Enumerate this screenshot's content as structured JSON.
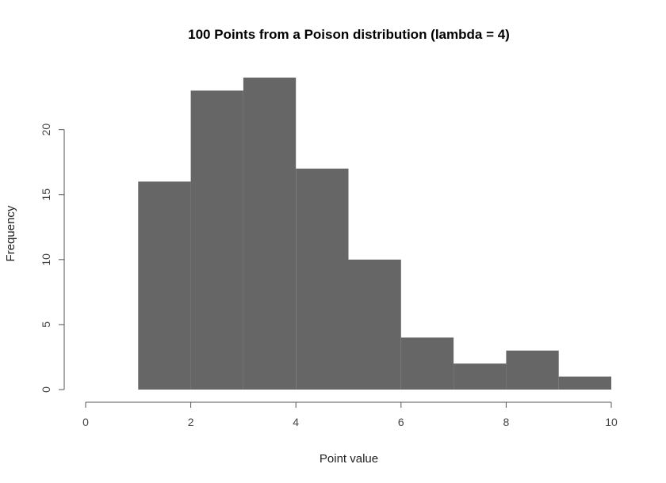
{
  "chart_data": {
    "type": "bar",
    "title": "100 Points from a Poison distribution (lambda = 4)",
    "xlabel": "Point value",
    "ylabel": "Frequency",
    "bins": [
      {
        "x0": 1,
        "x1": 2,
        "count": 16
      },
      {
        "x0": 2,
        "x1": 3,
        "count": 23
      },
      {
        "x0": 3,
        "x1": 4,
        "count": 24
      },
      {
        "x0": 4,
        "x1": 5,
        "count": 17
      },
      {
        "x0": 5,
        "x1": 6,
        "count": 10
      },
      {
        "x0": 6,
        "x1": 7,
        "count": 4
      },
      {
        "x0": 7,
        "x1": 8,
        "count": 2
      },
      {
        "x0": 8,
        "x1": 9,
        "count": 3
      },
      {
        "x0": 9,
        "x1": 10,
        "count": 1
      }
    ],
    "xlim": [
      0,
      10
    ],
    "ylim": [
      0,
      24
    ],
    "xticks": [
      "0",
      "2",
      "4",
      "6",
      "8",
      "10"
    ],
    "yticks": [
      "0",
      "5",
      "10",
      "15",
      "20"
    ],
    "bar_color": "#666666",
    "grid": false,
    "legend": "none"
  }
}
